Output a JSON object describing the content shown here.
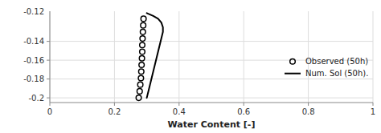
{
  "chart_data": {
    "type": "line",
    "xlabel": "Water Content [-]",
    "annotations": [
      "-0.12"
    ],
    "series": [
      {
        "name": "Observed (50h)",
        "type": "scatter",
        "marker": "circle",
        "color": "#000000",
        "x": [
          0.275,
          0.278,
          0.28,
          0.282,
          0.283,
          0.284,
          0.285,
          0.286,
          0.286,
          0.287,
          0.288,
          0.289,
          0.29
        ],
        "values": [
          -0.2,
          -0.193,
          -0.186,
          -0.179,
          -0.172,
          -0.165,
          -0.158,
          -0.151,
          -0.144,
          -0.137,
          -0.13,
          -0.123,
          -0.116
        ]
      },
      {
        "name": "Num. Sol (50h).",
        "type": "line",
        "color": "#000000",
        "x": [
          0.3,
          0.305,
          0.31,
          0.315,
          0.32,
          0.325,
          0.33,
          0.335,
          0.34,
          0.345,
          0.35,
          0.35,
          0.345,
          0.335,
          0.32,
          0.3
        ],
        "values": [
          -0.2,
          -0.193,
          -0.186,
          -0.179,
          -0.172,
          -0.165,
          -0.158,
          -0.151,
          -0.144,
          -0.137,
          -0.13,
          -0.125,
          -0.12,
          -0.116,
          -0.113,
          -0.11
        ]
      }
    ],
    "xlim": [
      0,
      1
    ],
    "ylim": [
      -0.205,
      -0.108
    ],
    "xticks": [
      0,
      0.2,
      0.4,
      0.6,
      0.8,
      1
    ],
    "yticks": [
      -0.2,
      -0.18,
      -0.16,
      -0.14
    ],
    "grid": true,
    "legend": "right"
  }
}
